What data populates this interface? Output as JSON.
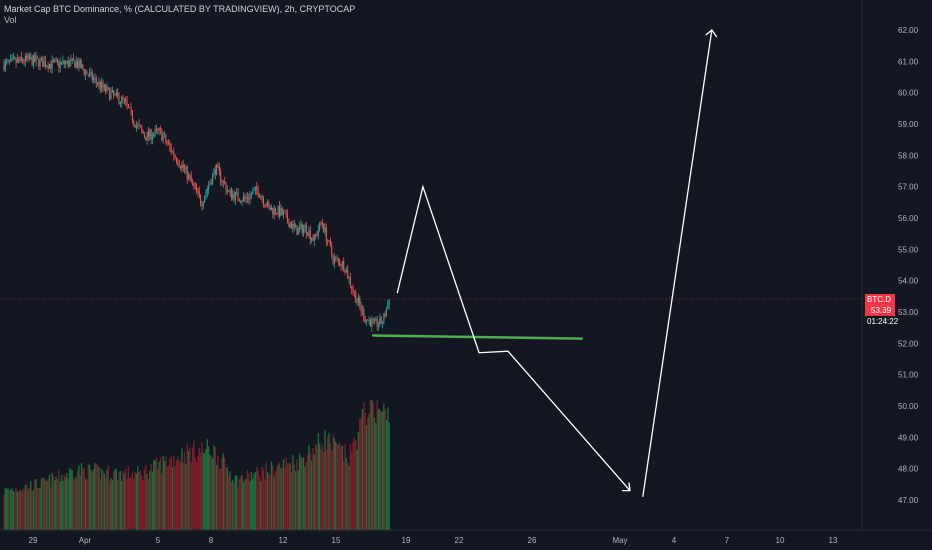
{
  "legend": {
    "title": "Market Cap BTC Dominance, % (CALCULATED BY TRADINGVIEW), 2h, CRYPTOCAP",
    "volume_label": "Vol"
  },
  "price_tag": {
    "symbol": "BTC.D",
    "value": "53.39",
    "countdown": "01:24:22"
  },
  "colors": {
    "background": "#131722",
    "up": "#26a69a",
    "down": "#ef5350",
    "vol_up": "#1b6f3a",
    "vol_down": "#7a1f2b",
    "drawing": "#ffffff",
    "support": "#4caf50",
    "price_line": "#f23645"
  },
  "chart_data": {
    "type": "candlestick",
    "x_ticks": [
      "29",
      "Apr",
      "5",
      "8",
      "12",
      "15",
      "19",
      "22",
      "26",
      "May",
      "4",
      "7",
      "10",
      "13"
    ],
    "y_ticks": [
      "62.00",
      "61.00",
      "60.00",
      "59.00",
      "58.00",
      "57.00",
      "56.00",
      "55.00",
      "54.00",
      "53.00",
      "52.00",
      "51.00",
      "50.00",
      "49.00",
      "48.00",
      "47.00"
    ],
    "ylim": [
      46.4,
      62.8
    ],
    "last_price": 53.39,
    "close_path": [
      {
        "day": 0,
        "value": 60.9
      },
      {
        "day": 1.5,
        "value": 61.05
      },
      {
        "day": 3,
        "value": 60.9
      },
      {
        "day": 4.5,
        "value": 60.95
      },
      {
        "day": 5.2,
        "value": 60.6
      },
      {
        "day": 6.5,
        "value": 60.0
      },
      {
        "day": 7.5,
        "value": 59.7
      },
      {
        "day": 8.2,
        "value": 59.0
      },
      {
        "day": 8.8,
        "value": 58.6
      },
      {
        "day": 9.7,
        "value": 58.75
      },
      {
        "day": 10.5,
        "value": 58.1
      },
      {
        "day": 11.3,
        "value": 57.5
      },
      {
        "day": 12.3,
        "value": 56.5
      },
      {
        "day": 12.8,
        "value": 57.1
      },
      {
        "day": 13.2,
        "value": 57.6
      },
      {
        "day": 14.0,
        "value": 56.8
      },
      {
        "day": 15.0,
        "value": 56.6
      },
      {
        "day": 15.8,
        "value": 56.9
      },
      {
        "day": 16.5,
        "value": 56.3
      },
      {
        "day": 17.2,
        "value": 56.2
      },
      {
        "day": 18.2,
        "value": 55.6
      },
      {
        "day": 18.8,
        "value": 55.7
      },
      {
        "day": 19.3,
        "value": 55.3
      },
      {
        "day": 19.8,
        "value": 55.9
      },
      {
        "day": 20.5,
        "value": 54.7
      },
      {
        "day": 21.2,
        "value": 54.5
      },
      {
        "day": 21.8,
        "value": 53.6
      },
      {
        "day": 22.5,
        "value": 52.8
      },
      {
        "day": 23.1,
        "value": 52.6
      },
      {
        "day": 23.6,
        "value": 52.7
      },
      {
        "day": 24.0,
        "value": 53.39
      }
    ],
    "volume_profile": [
      {
        "day": 0,
        "value": 0.3
      },
      {
        "day": 2.5,
        "value": 0.36
      },
      {
        "day": 4.5,
        "value": 0.46
      },
      {
        "day": 6.5,
        "value": 0.44
      },
      {
        "day": 8.5,
        "value": 0.43
      },
      {
        "day": 10.0,
        "value": 0.52
      },
      {
        "day": 11.5,
        "value": 0.6
      },
      {
        "day": 13.0,
        "value": 0.62
      },
      {
        "day": 14.5,
        "value": 0.38
      },
      {
        "day": 16.5,
        "value": 0.46
      },
      {
        "day": 18.5,
        "value": 0.54
      },
      {
        "day": 20.0,
        "value": 0.7
      },
      {
        "day": 21.5,
        "value": 0.55
      },
      {
        "day": 22.8,
        "value": 1.0
      },
      {
        "day": 24.0,
        "value": 0.85
      }
    ],
    "drawings": {
      "support_line": {
        "day_start": 23.0,
        "day_end": 36.0,
        "value_start": 52.25,
        "value_end": 52.15
      },
      "projection": [
        {
          "day": 24.5,
          "value": 53.6
        },
        {
          "day": 26.1,
          "value": 57.0
        },
        {
          "day": 29.6,
          "value": 51.7
        },
        {
          "day": 31.4,
          "value": 51.75
        },
        {
          "day": 39.0,
          "value": 47.3
        },
        {
          "day": 39.8,
          "value": 47.1
        },
        {
          "day": 44.1,
          "value": 62.0
        }
      ]
    }
  }
}
